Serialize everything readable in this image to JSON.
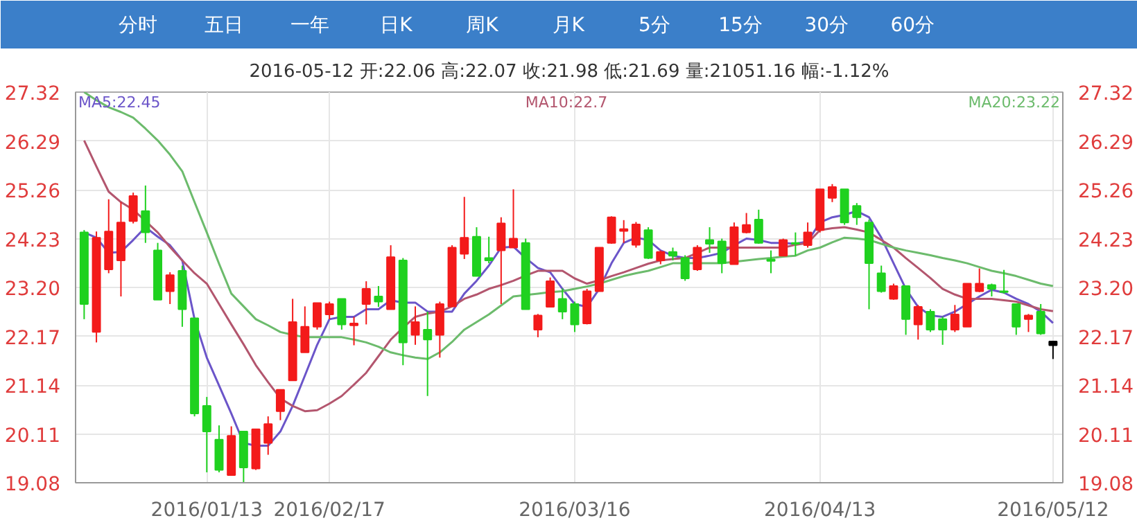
{
  "chart_data": {
    "type": "candlestick",
    "subtitle": "2016-05-12 开:22.06 高:22.07 收:21.98 低:21.69 量:21051.16 幅:-1.12%",
    "annotations": [
      "分时",
      "五日",
      "一年",
      "日K",
      "周K",
      "月K",
      "5分",
      "15分",
      "30分",
      "60分"
    ],
    "categories": [
      null,
      null,
      null,
      null,
      null,
      null,
      null,
      null,
      null,
      null,
      "2016/01/13",
      null,
      null,
      null,
      null,
      null,
      null,
      null,
      null,
      null,
      "2016/02/17",
      null,
      null,
      null,
      null,
      null,
      null,
      null,
      null,
      null,
      null,
      null,
      null,
      null,
      null,
      null,
      null,
      null,
      null,
      null,
      "2016/03/16",
      null,
      null,
      null,
      null,
      null,
      null,
      null,
      null,
      null,
      null,
      null,
      null,
      null,
      null,
      null,
      null,
      null,
      null,
      null,
      "2016/04/13",
      null,
      null,
      null,
      null,
      null,
      null,
      null,
      null,
      null,
      null,
      null,
      null,
      null,
      null,
      null,
      null,
      null,
      null,
      "2016/05/12"
    ],
    "ohlc": [
      [
        24.36,
        24.41,
        22.53,
        22.85
      ],
      [
        22.26,
        24.38,
        22.04,
        24.25
      ],
      [
        23.58,
        25.06,
        23.5,
        24.38
      ],
      [
        23.77,
        25.0,
        23.01,
        24.57
      ],
      [
        24.6,
        25.2,
        24.55,
        25.13
      ],
      [
        24.81,
        25.35,
        24.14,
        24.36
      ],
      [
        23.98,
        24.14,
        22.94,
        22.94
      ],
      [
        23.12,
        23.52,
        22.85,
        23.46
      ],
      [
        23.55,
        23.66,
        22.37,
        22.74
      ],
      [
        22.55,
        22.55,
        20.48,
        20.54
      ],
      [
        20.7,
        20.89,
        19.3,
        20.16
      ],
      [
        19.99,
        20.29,
        19.3,
        19.35
      ],
      [
        19.24,
        20.27,
        19.24,
        20.07
      ],
      [
        20.16,
        20.16,
        19.08,
        19.4
      ],
      [
        19.38,
        20.21,
        19.35,
        20.21
      ],
      [
        19.92,
        20.48,
        19.67,
        20.32
      ],
      [
        20.59,
        21.04,
        20.4,
        21.04
      ],
      [
        21.24,
        22.96,
        21.24,
        22.47
      ],
      [
        21.83,
        22.8,
        21.83,
        22.37
      ],
      [
        22.37,
        22.87,
        22.31,
        22.87
      ],
      [
        22.63,
        22.9,
        22.53,
        22.85
      ],
      [
        22.96,
        22.96,
        22.31,
        22.42
      ],
      [
        22.4,
        22.58,
        21.98,
        22.44
      ],
      [
        22.85,
        23.33,
        22.42,
        23.17
      ],
      [
        23.01,
        23.23,
        22.79,
        22.9
      ],
      [
        22.74,
        24.09,
        22.74,
        23.84
      ],
      [
        23.77,
        23.82,
        21.56,
        22.04
      ],
      [
        22.2,
        22.8,
        21.99,
        22.47
      ],
      [
        22.31,
        22.69,
        20.91,
        22.1
      ],
      [
        22.2,
        22.9,
        21.72,
        22.85
      ],
      [
        22.8,
        24.09,
        22.8,
        24.04
      ],
      [
        23.91,
        25.11,
        23.8,
        24.25
      ],
      [
        24.27,
        24.47,
        23.44,
        23.44
      ],
      [
        23.82,
        24.27,
        23.71,
        23.77
      ],
      [
        23.98,
        24.68,
        22.85,
        24.55
      ],
      [
        24.04,
        25.27,
        24.04,
        24.23
      ],
      [
        24.14,
        24.23,
        22.74,
        22.74
      ],
      [
        22.31,
        22.64,
        22.15,
        22.61
      ],
      [
        22.79,
        23.41,
        22.79,
        23.33
      ],
      [
        22.96,
        23.18,
        22.53,
        22.69
      ],
      [
        22.85,
        22.9,
        22.26,
        22.42
      ],
      [
        22.44,
        23.17,
        22.42,
        23.12
      ],
      [
        23.12,
        24.04,
        23.12,
        24.04
      ],
      [
        24.14,
        24.7,
        24.12,
        24.68
      ],
      [
        24.39,
        24.62,
        24.14,
        24.43
      ],
      [
        24.1,
        24.58,
        24.04,
        24.53
      ],
      [
        24.41,
        24.47,
        23.8,
        23.82
      ],
      [
        23.77,
        23.98,
        23.69,
        23.95
      ],
      [
        23.95,
        24.04,
        23.77,
        23.87
      ],
      [
        23.82,
        23.88,
        23.34,
        23.39
      ],
      [
        23.58,
        24.09,
        23.55,
        24.04
      ],
      [
        24.2,
        24.47,
        23.93,
        24.12
      ],
      [
        24.17,
        24.23,
        23.5,
        23.71
      ],
      [
        23.69,
        24.57,
        23.69,
        24.47
      ],
      [
        24.36,
        24.77,
        24.34,
        24.52
      ],
      [
        24.63,
        24.84,
        24.12,
        24.14
      ],
      [
        23.79,
        23.98,
        23.5,
        23.76
      ],
      [
        23.87,
        24.23,
        23.87,
        24.2
      ],
      [
        24.14,
        24.36,
        23.87,
        24.12
      ],
      [
        24.09,
        24.57,
        24.04,
        24.36
      ],
      [
        24.41,
        25.27,
        24.36,
        25.27
      ],
      [
        25.09,
        25.38,
        25.0,
        25.32
      ],
      [
        25.27,
        25.27,
        24.52,
        24.57
      ],
      [
        24.92,
        24.98,
        24.52,
        24.68
      ],
      [
        24.57,
        24.63,
        22.74,
        23.71
      ],
      [
        23.5,
        23.66,
        23.09,
        23.12
      ],
      [
        22.96,
        23.28,
        22.94,
        23.23
      ],
      [
        23.23,
        23.23,
        22.2,
        22.53
      ],
      [
        22.42,
        22.83,
        22.1,
        22.79
      ],
      [
        22.69,
        22.74,
        22.26,
        22.31
      ],
      [
        22.53,
        22.58,
        21.99,
        22.31
      ],
      [
        22.31,
        22.83,
        22.26,
        22.63
      ],
      [
        22.37,
        23.28,
        22.37,
        23.28
      ],
      [
        23.12,
        23.6,
        23.1,
        23.28
      ],
      [
        23.25,
        23.28,
        23.01,
        23.17
      ],
      [
        23.12,
        23.57,
        23.07,
        23.1
      ],
      [
        22.85,
        22.85,
        22.2,
        22.37
      ],
      [
        22.53,
        22.64,
        22.26,
        22.61
      ],
      [
        22.69,
        22.85,
        22.2,
        22.23
      ],
      [
        22.06,
        22.07,
        21.69,
        21.98
      ]
    ],
    "colors": [
      "#1fd11f",
      "#f31a1a",
      "#f31a1a",
      "#f31a1a",
      "#f31a1a",
      "#1fd11f",
      "#1fd11f",
      "#f31a1a",
      "#1fd11f",
      "#1fd11f",
      "#1fd11f",
      "#1fd11f",
      "#f31a1a",
      "#1fd11f",
      "#f31a1a",
      "#f31a1a",
      "#f31a1a",
      "#f31a1a",
      "#f31a1a",
      "#f31a1a",
      "#f31a1a",
      "#1fd11f",
      "#f31a1a",
      "#f31a1a",
      "#1fd11f",
      "#f31a1a",
      "#1fd11f",
      "#f31a1a",
      "#1fd11f",
      "#f31a1a",
      "#f31a1a",
      "#f31a1a",
      "#1fd11f",
      "#1fd11f",
      "#f31a1a",
      "#f31a1a",
      "#1fd11f",
      "#f31a1a",
      "#f31a1a",
      "#1fd11f",
      "#1fd11f",
      "#f31a1a",
      "#f31a1a",
      "#f31a1a",
      "#f31a1a",
      "#f31a1a",
      "#1fd11f",
      "#f31a1a",
      "#1fd11f",
      "#1fd11f",
      "#f31a1a",
      "#1fd11f",
      "#1fd11f",
      "#f31a1a",
      "#f31a1a",
      "#1fd11f",
      "#1fd11f",
      "#f31a1a",
      "#1fd11f",
      "#f31a1a",
      "#f31a1a",
      "#f31a1a",
      "#1fd11f",
      "#1fd11f",
      "#1fd11f",
      "#1fd11f",
      "#f31a1a",
      "#1fd11f",
      "#f31a1a",
      "#1fd11f",
      "#1fd11f",
      "#f31a1a",
      "#f31a1a",
      "#f31a1a",
      "#1fd11f",
      "#1fd11f",
      "#1fd11f",
      "#f31a1a",
      "#1fd11f",
      "#000000"
    ],
    "series": [
      {
        "name": "MA5:22.45",
        "type": "line",
        "color": "#6b55c9",
        "values": [
          24.36,
          24.25,
          23.93,
          23.95,
          24.2,
          24.47,
          24.27,
          24.09,
          23.77,
          22.53,
          21.72,
          21.13,
          20.54,
          19.92,
          19.86,
          19.86,
          20.16,
          20.7,
          21.34,
          21.99,
          22.53,
          22.58,
          22.58,
          22.74,
          22.74,
          22.93,
          22.88,
          22.88,
          22.69,
          22.69,
          22.69,
          23.07,
          23.34,
          23.66,
          24.04,
          24.06,
          23.82,
          23.61,
          23.52,
          23.17,
          22.85,
          22.79,
          23.17,
          23.71,
          24.14,
          24.25,
          24.2,
          23.98,
          23.87,
          23.82,
          23.82,
          23.87,
          23.93,
          24.09,
          24.23,
          24.2,
          24.14,
          24.14,
          24.12,
          24.17,
          24.57,
          24.68,
          24.73,
          24.81,
          24.68,
          24.25,
          23.71,
          23.17,
          22.79,
          22.61,
          22.58,
          22.69,
          22.85,
          23.01,
          23.15,
          23.09,
          22.96,
          22.85,
          22.69,
          22.45
        ]
      },
      {
        "name": "MA10:22.7",
        "type": "line",
        "color": "#b3566e",
        "values": [
          26.3,
          25.75,
          25.22,
          25.0,
          24.84,
          24.6,
          24.36,
          24.05,
          23.77,
          23.5,
          23.28,
          22.85,
          22.42,
          22.0,
          21.56,
          21.2,
          20.86,
          20.7,
          20.59,
          20.61,
          20.75,
          20.91,
          21.15,
          21.4,
          21.75,
          22.1,
          22.35,
          22.58,
          22.65,
          22.69,
          22.8,
          22.96,
          23.05,
          23.17,
          23.25,
          23.34,
          23.45,
          23.55,
          23.55,
          23.55,
          23.39,
          23.28,
          23.35,
          23.44,
          23.52,
          23.61,
          23.7,
          23.77,
          23.8,
          23.82,
          23.93,
          24.04,
          24.04,
          24.04,
          24.04,
          24.04,
          24.04,
          24.04,
          24.1,
          24.14,
          24.41,
          24.45,
          24.47,
          24.42,
          24.36,
          24.2,
          24.04,
          23.82,
          23.61,
          23.4,
          23.17,
          23.05,
          22.96,
          22.96,
          22.96,
          22.93,
          22.9,
          22.82,
          22.74,
          22.7
        ]
      },
      {
        "name": "MA20:23.22",
        "type": "line",
        "color": "#6cbb6c",
        "values": [
          27.32,
          27.15,
          27.0,
          26.9,
          26.78,
          26.55,
          26.3,
          26.0,
          25.65,
          25.0,
          24.36,
          23.7,
          23.07,
          22.8,
          22.53,
          22.4,
          22.26,
          22.2,
          22.15,
          22.15,
          22.15,
          22.15,
          22.1,
          22.04,
          21.95,
          21.83,
          21.77,
          21.72,
          21.69,
          21.83,
          22.05,
          22.31,
          22.47,
          22.63,
          22.82,
          23.01,
          23.04,
          23.07,
          23.1,
          23.12,
          23.17,
          23.22,
          23.28,
          23.36,
          23.44,
          23.5,
          23.55,
          23.63,
          23.71,
          23.71,
          23.71,
          23.71,
          23.71,
          23.74,
          23.77,
          23.8,
          23.82,
          23.85,
          23.87,
          23.98,
          24.04,
          24.15,
          24.25,
          24.23,
          24.2,
          24.12,
          24.04,
          23.98,
          23.93,
          23.88,
          23.82,
          23.77,
          23.71,
          23.63,
          23.55,
          23.5,
          23.44,
          23.36,
          23.28,
          23.23
        ]
      }
    ],
    "ylim": [
      19.08,
      27.32
    ],
    "yticks": [
      19.08,
      20.11,
      21.14,
      22.17,
      {
        "value": 23.2,
        "label": "23.20"
      },
      24.23,
      25.26,
      26.29,
      27.32
    ],
    "y2lim": [
      19.08,
      27.32
    ],
    "y2ticks": [
      19.08,
      20.11,
      21.14,
      22.17,
      {
        "value": 23.2,
        "label": "23.20"
      },
      24.23,
      25.26,
      26.29,
      27.32
    ],
    "grid": true
  }
}
